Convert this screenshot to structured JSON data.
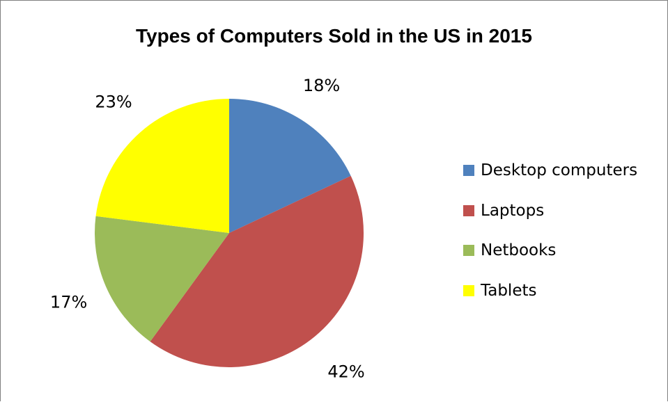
{
  "chart_data": {
    "type": "pie",
    "title": "Types of Computers Sold in the US in 2015",
    "categories": [
      "Desktop computers",
      "Laptops",
      "Netbooks",
      "Tablets"
    ],
    "values": [
      18,
      42,
      17,
      23
    ],
    "value_labels": [
      "18%",
      "42%",
      "17%",
      "23%"
    ],
    "colors": [
      "#4f81bd",
      "#c0504d",
      "#9bbb59",
      "#ffff00"
    ],
    "legend_position": "right",
    "start_angle": "12 o'clock",
    "direction": "clockwise"
  }
}
